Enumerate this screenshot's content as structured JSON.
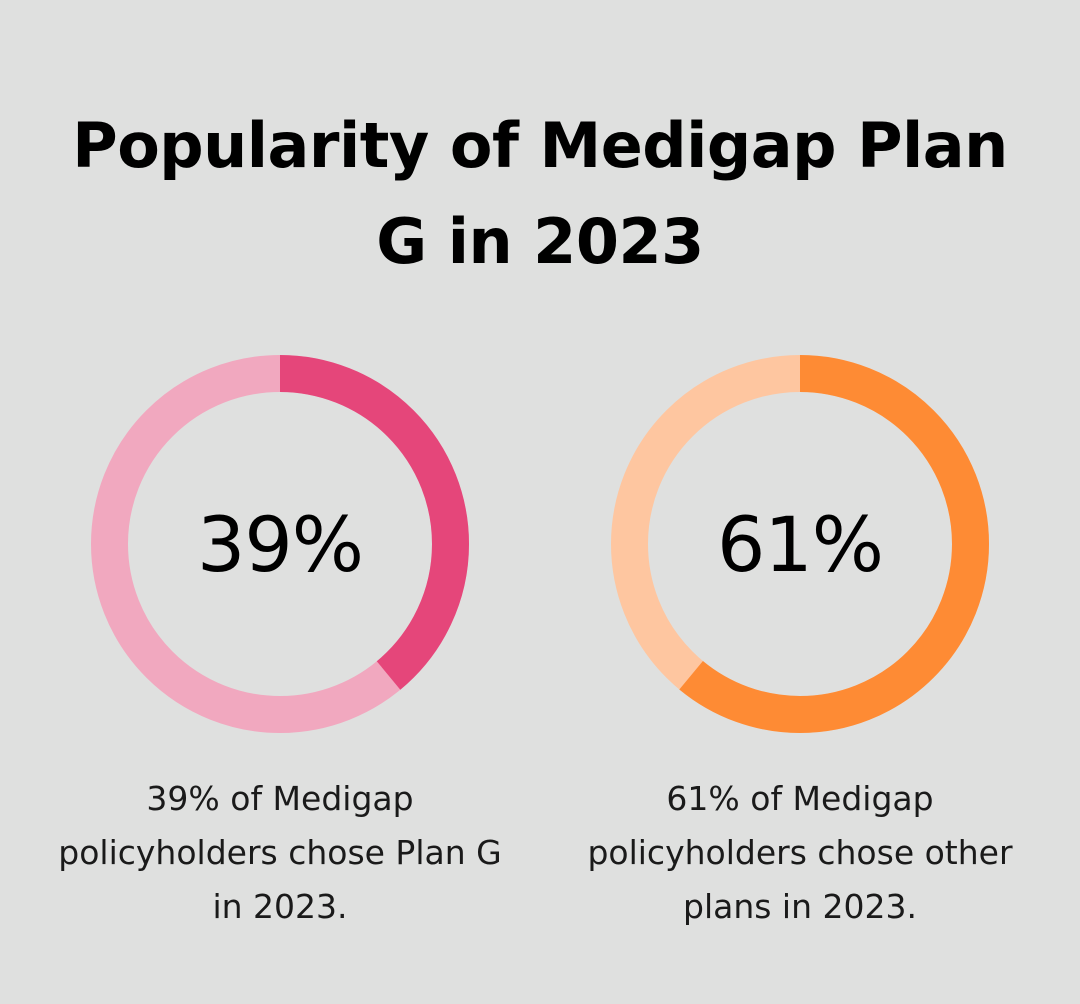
{
  "chart_data": {
    "type": "donut",
    "title": "Popularity of Medigap Plan G in 2023",
    "charts": [
      {
        "value": 39,
        "label": "39%",
        "caption": "39% of Medigap policyholders chose Plan G in 2023.",
        "colors": {
          "filled": "#e5467a",
          "track": "#f1a8bf"
        }
      },
      {
        "value": 61,
        "label": "61%",
        "caption": "61% of Medigap policyholders chose other plans in 2023.",
        "colors": {
          "filled": "#fe8b34",
          "track": "#fec6a0"
        }
      }
    ]
  }
}
